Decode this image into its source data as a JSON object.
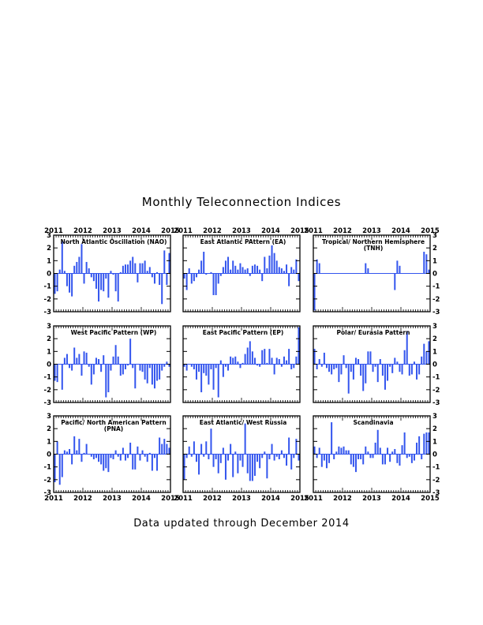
{
  "title": "Monthly Teleconnection Indices",
  "footer": "Data updated through December 2014",
  "colors": {
    "bar": "#3355ee",
    "zero_line": "#3355ee",
    "frame": "#000000",
    "background": "#ffffff"
  },
  "chart_data": [
    {
      "type": "bar",
      "title": "North Atlantic Oscillation (NAO)",
      "title_lines": [
        "North Atlantic Oscillation (NAO)"
      ],
      "x_labels": [
        "2011",
        "2012",
        "2013",
        "2014",
        "2015"
      ],
      "ylim": [
        -3,
        3
      ],
      "yticks": [
        3,
        2,
        1,
        0,
        -1,
        -2,
        -3
      ],
      "y_axis_side": "left",
      "top_axis": true,
      "bottom_axis": false,
      "values": [
        -1.6,
        -1.4,
        0.3,
        2.5,
        0.2,
        -1.0,
        -1.5,
        -1.8,
        0.6,
        0.9,
        1.3,
        2.3,
        -0.8,
        0.9,
        0.4,
        -0.3,
        -0.6,
        -1.2,
        -2.2,
        -1.3,
        -1.4,
        -0.4,
        -1.9,
        0.2,
        -0.1,
        -1.4,
        -2.2,
        0.1,
        0.6,
        0.7,
        0.7,
        1.0,
        1.3,
        0.8,
        -0.7,
        0.8,
        0.8,
        1.0,
        0.2,
        0.5,
        -0.3,
        -0.8,
        0.1,
        -0.9,
        -2.4,
        1.8,
        -0.9,
        1.6
      ]
    },
    {
      "type": "bar",
      "title": "East Atlantic PAttern (EA)",
      "title_lines": [
        "East Atlantic PAttern (EA)"
      ],
      "x_labels": [
        "2011",
        "2012",
        "2013",
        "2014",
        "2015"
      ],
      "ylim": [
        -3,
        3
      ],
      "yticks": [
        3,
        2,
        1,
        0,
        -1,
        -2,
        -3
      ],
      "y_axis_side": "none",
      "top_axis": true,
      "bottom_axis": false,
      "values": [
        -0.4,
        -1.3,
        0.4,
        -0.8,
        -0.6,
        -0.3,
        0.3,
        1.0,
        1.7,
        -0.1,
        0.0,
        0.1,
        -1.7,
        -1.7,
        -0.8,
        -0.2,
        0.5,
        1.0,
        1.3,
        0.3,
        1.0,
        0.6,
        0.3,
        0.8,
        0.5,
        0.3,
        0.4,
        -0.2,
        0.6,
        0.7,
        0.6,
        0.3,
        -0.6,
        1.3,
        0.4,
        1.4,
        2.2,
        1.6,
        1.0,
        0.5,
        0.4,
        0.2,
        0.7,
        -1.0,
        0.5,
        0.3,
        1.1,
        -0.6
      ]
    },
    {
      "type": "bar",
      "title": "Tropical/ Northern Hemisphere (TNH)",
      "title_lines": [
        "Tropical/ Northern Hemisphere",
        "(TNH)"
      ],
      "x_labels": [
        "2011",
        "2012",
        "2013",
        "2014",
        "2015"
      ],
      "ylim": [
        -3,
        3
      ],
      "yticks": [
        3,
        2,
        1,
        0,
        -1,
        -2,
        -3
      ],
      "y_axis_side": "right",
      "top_axis": true,
      "bottom_axis": false,
      "values": [
        -2.9,
        1.1,
        0.8,
        0,
        0,
        0,
        0,
        0,
        0,
        0,
        0,
        0,
        0,
        0,
        0,
        0,
        0,
        0,
        0,
        0,
        0,
        0.8,
        0.4,
        0,
        0,
        0,
        0,
        0,
        0,
        0,
        0,
        0,
        0,
        -1.3,
        1.0,
        0.6,
        0,
        0,
        0,
        0,
        0,
        0,
        0,
        0,
        0,
        1.7,
        1.5,
        0.3
      ]
    },
    {
      "type": "bar",
      "title": "West Pacific Pattern (WP)",
      "title_lines": [
        "West Pacific Pattern (WP)"
      ],
      "x_labels": [],
      "ylim": [
        -3,
        3
      ],
      "yticks": [
        3,
        2,
        1,
        0,
        -1,
        -2,
        -3
      ],
      "y_axis_side": "left",
      "top_axis": false,
      "bottom_axis": false,
      "values": [
        -1.3,
        -1.4,
        0.0,
        -2.0,
        0.5,
        0.8,
        -0.3,
        -0.5,
        1.3,
        0.5,
        0.8,
        -0.9,
        1.0,
        0.9,
        -0.2,
        -1.6,
        -0.8,
        0.5,
        0.4,
        -0.6,
        0.7,
        -2.6,
        -2.2,
        -0.5,
        0.6,
        1.5,
        0.6,
        -0.9,
        -0.8,
        -0.4,
        -0.1,
        2.0,
        -0.3,
        -1.9,
        0.0,
        -0.5,
        -0.6,
        -1.2,
        -1.5,
        -0.3,
        -1.6,
        -1.9,
        -1.3,
        -1.2,
        -0.5,
        -0.2,
        0.2,
        -0.2
      ]
    },
    {
      "type": "bar",
      "title": "East Pacific Pattern (EP)",
      "title_lines": [
        "East Pacific Pattern (EP)"
      ],
      "x_labels": [],
      "ylim": [
        -3,
        3
      ],
      "yticks": [
        3,
        2,
        1,
        0,
        -1,
        -2,
        -3
      ],
      "y_axis_side": "none",
      "top_axis": false,
      "bottom_axis": false,
      "values": [
        -0.2,
        -0.5,
        0.0,
        -0.2,
        -0.4,
        -1.2,
        -0.6,
        -2.2,
        -0.7,
        -0.9,
        -1.6,
        -0.4,
        -2.0,
        -0.3,
        -2.6,
        0.3,
        -1.0,
        -0.2,
        -0.5,
        0.6,
        0.5,
        0.6,
        0.2,
        -0.3,
        0.1,
        0.8,
        1.3,
        1.8,
        1.0,
        0.5,
        -0.1,
        -0.2,
        1.1,
        1.2,
        0.1,
        1.2,
        0.5,
        -0.8,
        0.5,
        0.4,
        -0.2,
        0.6,
        0.3,
        1.2,
        -0.4,
        -0.3,
        0.6,
        2.9
      ]
    },
    {
      "type": "bar",
      "title": "Polar/ Eurasia Pattern",
      "title_lines": [
        "Polar/ Eurasia Pattern"
      ],
      "x_labels": [],
      "ylim": [
        -3,
        3
      ],
      "yticks": [
        3,
        2,
        1,
        0,
        -1,
        -2,
        -3
      ],
      "y_axis_side": "right",
      "top_axis": false,
      "bottom_axis": false,
      "values": [
        1.2,
        -0.4,
        0.4,
        -0.2,
        0.9,
        -0.3,
        -0.6,
        -0.8,
        -0.4,
        -0.3,
        -1.4,
        -0.8,
        0.7,
        -0.3,
        -2.3,
        -0.6,
        -1.2,
        0.5,
        0.4,
        -0.9,
        -2.1,
        -1.5,
        1.0,
        1.0,
        -0.6,
        -0.2,
        -1.4,
        0.4,
        -0.9,
        -2.0,
        -1.3,
        -0.2,
        -0.7,
        0.5,
        0.2,
        -0.6,
        -0.8,
        1.1,
        2.6,
        -0.9,
        -0.8,
        0.2,
        -1.2,
        -0.8,
        0.6,
        1.6,
        1.0,
        1.8
      ]
    },
    {
      "type": "bar",
      "title": "Pacific/ North American Pattern (PNA)",
      "title_lines": [
        "Pacific/ North American Pattern",
        "(PNA)"
      ],
      "x_labels": [
        "2011",
        "2012",
        "2013",
        "2014",
        "2015"
      ],
      "ylim": [
        -3,
        3
      ],
      "yticks": [
        3,
        2,
        1,
        0,
        -1,
        -2,
        -3
      ],
      "y_axis_side": "left",
      "top_axis": false,
      "bottom_axis": true,
      "values": [
        -2.2,
        1.0,
        -2.4,
        -1.8,
        0.3,
        0.2,
        0.4,
        -0.8,
        1.4,
        0.3,
        1.2,
        -0.6,
        0.1,
        0.8,
        0.0,
        -0.2,
        -0.4,
        -0.3,
        -0.6,
        -0.8,
        -1.3,
        -1.1,
        -1.4,
        -0.3,
        -0.4,
        0.3,
        -0.2,
        -0.5,
        0.5,
        -0.5,
        -0.3,
        0.9,
        -1.2,
        -1.2,
        0.6,
        -0.5,
        0.3,
        -0.2,
        -0.6,
        0.1,
        -1.3,
        -0.3,
        -1.3,
        1.3,
        0.8,
        1.2,
        0.8,
        0.5
      ]
    },
    {
      "type": "bar",
      "title": "East Atlantic/ West Russia",
      "title_lines": [
        "East Atlantic/ West Russia"
      ],
      "x_labels": [
        "2011",
        "2012",
        "2013",
        "2014",
        "2015"
      ],
      "ylim": [
        -3,
        3
      ],
      "yticks": [
        3,
        2,
        1,
        0,
        -1,
        -2,
        -3
      ],
      "y_axis_side": "none",
      "top_axis": false,
      "bottom_axis": true,
      "values": [
        -2.0,
        -0.3,
        0.6,
        -0.2,
        1.0,
        -0.6,
        -1.6,
        0.8,
        -0.2,
        1.0,
        -0.4,
        2.0,
        -1.0,
        -0.4,
        -1.5,
        -0.7,
        0.5,
        -2.0,
        -0.5,
        0.8,
        -1.8,
        0.2,
        -1.5,
        -0.5,
        -1.0,
        2.4,
        -1.5,
        -2.1,
        -2.1,
        -1.7,
        -0.6,
        -1.1,
        -0.3,
        0.2,
        -1.9,
        -0.4,
        0.8,
        -0.5,
        -0.2,
        -0.4,
        0.3,
        -0.3,
        -0.9,
        1.3,
        -1.2,
        -0.3,
        1.2,
        -0.5
      ]
    },
    {
      "type": "bar",
      "title": "Scandinavia",
      "title_lines": [
        "Scandinavia"
      ],
      "x_labels": [
        "2011",
        "2012",
        "2013",
        "2014",
        "2015"
      ],
      "ylim": [
        -3,
        3
      ],
      "yticks": [
        3,
        2,
        1,
        0,
        -1,
        -2,
        -3
      ],
      "y_axis_side": "right",
      "top_axis": false,
      "bottom_axis": true,
      "values": [
        0.6,
        -0.3,
        0.5,
        -1.0,
        -0.5,
        -1.1,
        -0.7,
        2.5,
        -0.4,
        0.2,
        0.6,
        0.5,
        0.6,
        0.3,
        0.3,
        -0.8,
        -1.0,
        -1.4,
        -0.4,
        -0.4,
        -0.8,
        0.6,
        0.2,
        -0.3,
        -0.3,
        0.9,
        1.9,
        0.5,
        -0.8,
        -0.8,
        0.5,
        -0.6,
        0.2,
        0.4,
        -0.7,
        -0.9,
        0.7,
        1.7,
        -0.3,
        -0.2,
        -0.7,
        -0.5,
        0.9,
        1.4,
        -0.4,
        1.6,
        1.7,
        1.7
      ]
    }
  ]
}
